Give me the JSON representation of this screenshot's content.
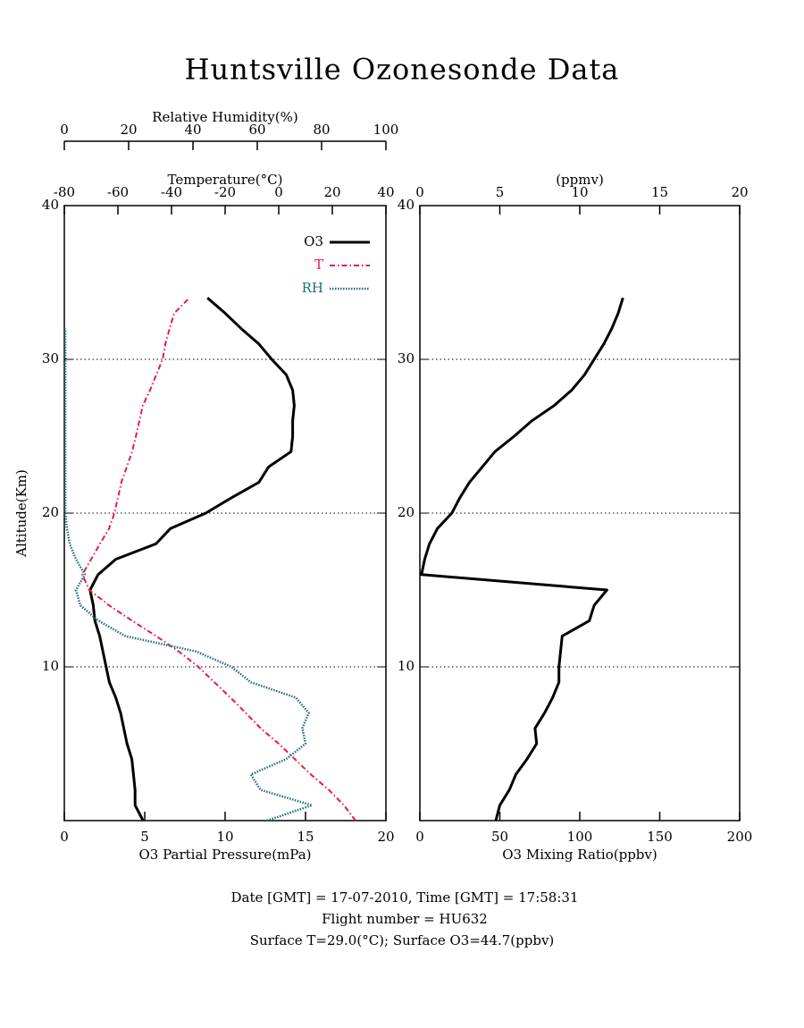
{
  "title": "Huntsville Ozonesonde Data",
  "notes": [
    "Date [GMT] = 17-07-2010,  Time [GMT] = 17:58:31",
    "Flight number = HU632",
    "Surface T=29.0(°C); Surface O3=44.7(ppbv)"
  ],
  "chart_data": [
    {
      "type": "line",
      "ylabel": "Altitude(Km)",
      "ylim": [
        0,
        40
      ],
      "yticks": [
        10,
        20,
        30,
        40
      ],
      "grid": true,
      "legend": "upper right",
      "y": [
        0,
        1,
        2,
        3,
        4,
        5,
        6,
        7,
        8,
        9,
        10,
        11,
        12,
        13,
        14,
        15,
        16,
        17,
        18,
        19,
        20,
        21,
        22,
        23,
        24,
        25,
        26,
        27,
        28,
        29,
        30,
        31,
        32,
        33,
        34
      ],
      "axes": [
        {
          "position": "bottom",
          "label": "O3 Partial Pressure(mPa)",
          "xlim": [
            0,
            20
          ],
          "xticks": [
            0,
            5,
            10,
            15,
            20
          ]
        },
        {
          "position": "top",
          "label": "Temperature(°C)",
          "xlim": [
            -80,
            40
          ],
          "xticks": [
            -80,
            -60,
            -40,
            -20,
            0,
            20,
            40
          ]
        },
        {
          "position": "top-outer",
          "label": "Relative Humidity(%)",
          "xlim": [
            0,
            100
          ],
          "xticks": [
            0,
            20,
            40,
            60,
            80,
            100
          ]
        }
      ],
      "series": [
        {
          "name": "O3",
          "color": "#000000",
          "dash": "solid",
          "axis": 0,
          "values": [
            4.9,
            4.4,
            4.4,
            4.3,
            4.2,
            3.9,
            3.7,
            3.5,
            3.2,
            2.8,
            2.6,
            2.4,
            2.2,
            1.9,
            1.8,
            1.6,
            2.1,
            3.2,
            5.7,
            6.6,
            8.8,
            10.4,
            12.1,
            12.7,
            14.1,
            14.2,
            14.2,
            14.3,
            14.2,
            13.8,
            12.9,
            12.1,
            11,
            10,
            8.9
          ]
        },
        {
          "name": "T",
          "color": "#e8174a",
          "dash": "dashdot",
          "axis": 1,
          "values": [
            28.7,
            24.3,
            18.7,
            12,
            6,
            0,
            -6.7,
            -12.3,
            -18,
            -24,
            -30,
            -37.3,
            -45.7,
            -54.7,
            -63.3,
            -70.7,
            -73.3,
            -70,
            -66.7,
            -63.3,
            -61.3,
            -60,
            -58.7,
            -56.7,
            -54.7,
            -53.3,
            -52,
            -50.7,
            -48,
            -45.7,
            -43.3,
            -42.3,
            -40.7,
            -39,
            -33.3
          ]
        },
        {
          "name": "RH",
          "color": "#1f6e78",
          "dash": "dotted",
          "axis": 2,
          "values": [
            63,
            77,
            61,
            58,
            69,
            75,
            74,
            76,
            72,
            58,
            52,
            41,
            19,
            10.6,
            5,
            3.6,
            6.4,
            3.6,
            1.7,
            0.8,
            0.3,
            0.3,
            0.3,
            0.3,
            0.3,
            0.3,
            0.3,
            0.3,
            0.3,
            0.3,
            0.3,
            0.3,
            0.3,
            null,
            null
          ]
        }
      ]
    },
    {
      "type": "line",
      "ylim": [
        0,
        40
      ],
      "yticks": [
        10,
        20,
        30,
        40
      ],
      "grid": true,
      "y": [
        0,
        1,
        2,
        3,
        4,
        5,
        6,
        7,
        8,
        9,
        10,
        11,
        12,
        13,
        14,
        15,
        16,
        17,
        18,
        19,
        20,
        21,
        22,
        23,
        24,
        25,
        26,
        27,
        28,
        29,
        30,
        31,
        32,
        33,
        34
      ],
      "axes": [
        {
          "position": "bottom",
          "label": "O3 Mixing Ratio(ppbv)",
          "xlim": [
            0,
            200
          ],
          "xticks": [
            0,
            50,
            100,
            150,
            200
          ]
        },
        {
          "position": "top",
          "label": "(ppmv)",
          "xlim": [
            0,
            20
          ],
          "xticks": [
            0,
            5,
            10,
            15,
            20
          ]
        }
      ],
      "series": [
        {
          "color": "#000000",
          "dash": "solid",
          "axis": 0,
          "values": [
            47.5,
            50,
            56,
            60,
            67,
            73,
            72,
            78,
            83,
            87,
            87,
            88,
            89,
            106,
            109,
            117,
            1,
            3,
            6,
            11,
            20,
            25,
            31,
            39,
            47,
            59,
            70,
            84,
            95,
            103,
            109,
            115,
            120,
            124,
            127
          ]
        }
      ]
    }
  ]
}
